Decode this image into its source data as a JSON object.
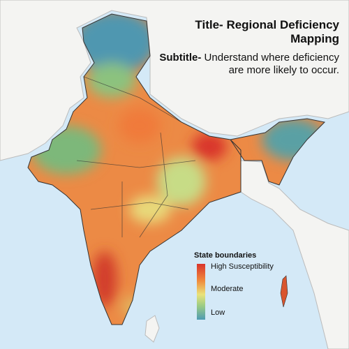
{
  "header": {
    "title": "Title- Regional Deficiency Mapping",
    "subtitle_label": "Subtitle-",
    "subtitle": "Understand where deficiency are more likely to occur."
  },
  "legend": {
    "title": "State boundaries",
    "labels": [
      "High Susceptibility",
      "Moderate",
      "Low"
    ]
  }
}
